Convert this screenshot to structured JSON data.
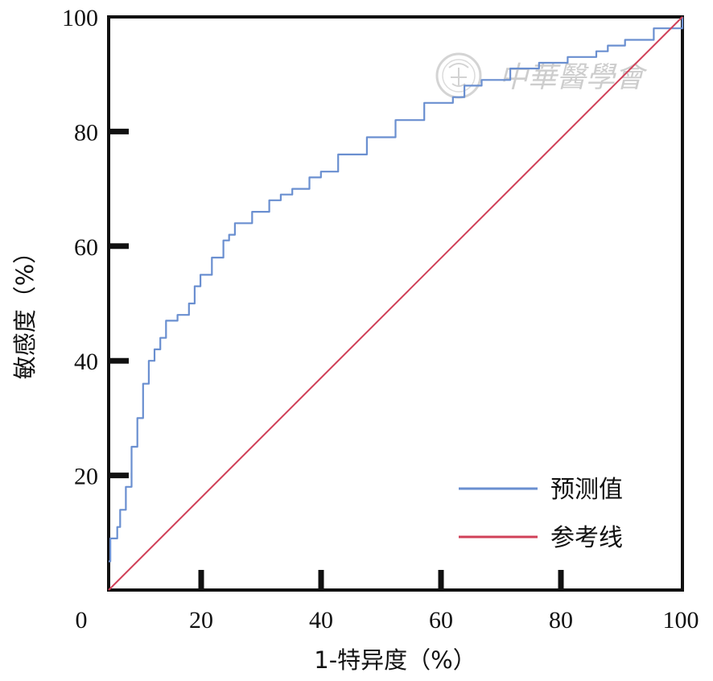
{
  "watermark": {
    "text": "中華醫學會"
  },
  "chart_data": {
    "type": "line",
    "xlabel": "1-特异度（%）",
    "ylabel": "敏感度（%）",
    "xlim": [
      0,
      100
    ],
    "ylim": [
      0,
      100
    ],
    "x_ticks": [
      "0",
      "20",
      "40",
      "60",
      "80",
      "100"
    ],
    "y_ticks": [
      "20",
      "40",
      "60",
      "80",
      "100"
    ],
    "grid": false,
    "legend_position": "bottom-right",
    "series": [
      {
        "name": "预测值",
        "color": "#6a8fd0",
        "x": [
          0,
          0.3,
          1.2,
          1.5,
          2,
          3,
          4,
          5,
          6,
          7,
          8,
          9,
          10,
          12,
          14,
          15,
          16,
          18,
          20,
          21,
          22,
          25,
          28,
          30,
          32,
          35,
          37,
          40,
          45,
          50,
          55,
          60,
          62,
          65,
          70,
          75,
          80,
          85,
          87,
          90,
          95,
          100
        ],
        "y": [
          5,
          9,
          9,
          11,
          14,
          18,
          25,
          30,
          36,
          40,
          42,
          44,
          47,
          48,
          50,
          53,
          55,
          58,
          61,
          62,
          64,
          66,
          68,
          69,
          70,
          72,
          73,
          76,
          79,
          82,
          85,
          86,
          88,
          89,
          91,
          92,
          93,
          94,
          95,
          96,
          98,
          100
        ]
      },
      {
        "name": "参考线",
        "color": "#d04058",
        "x": [
          0,
          100
        ],
        "y": [
          0,
          100
        ]
      }
    ]
  }
}
